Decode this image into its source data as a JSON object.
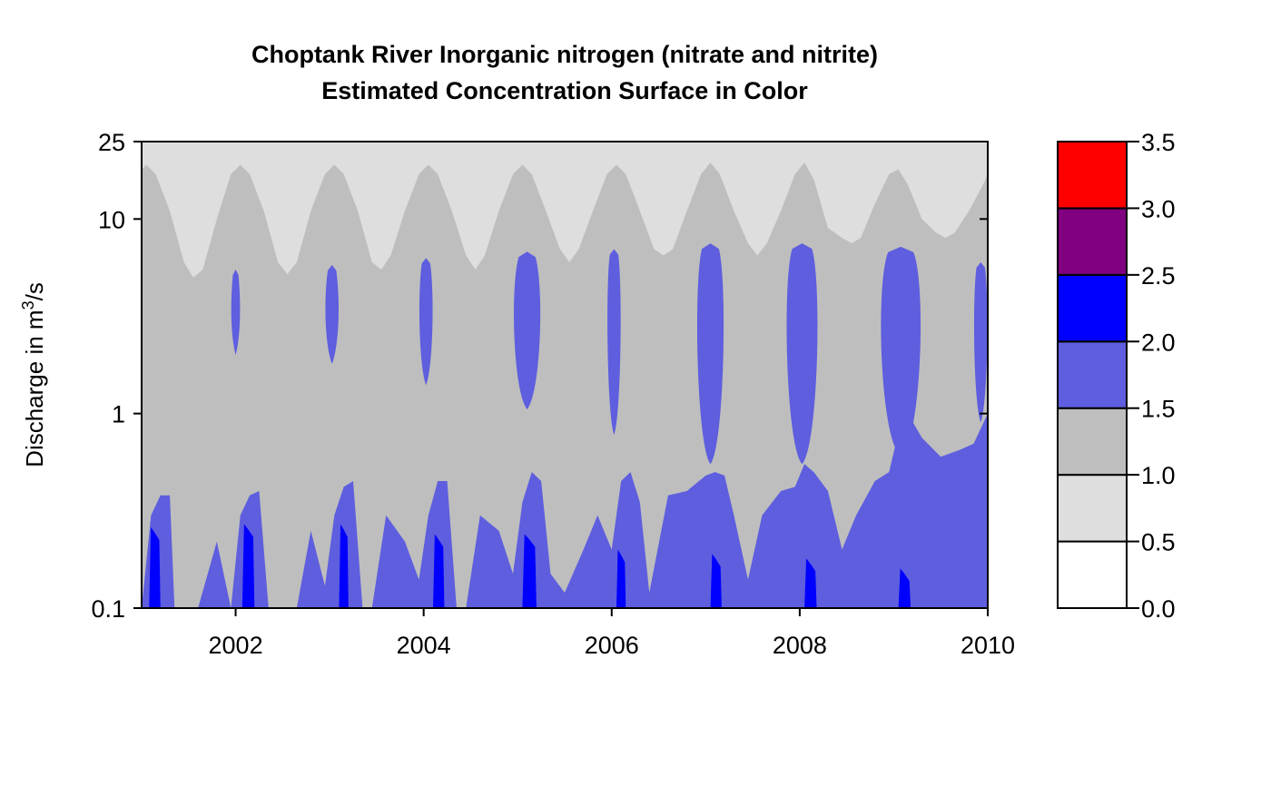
{
  "chart_data": {
    "type": "heatmap",
    "title": "Choptank River   Inorganic nitrogen (nitrate and nitrite)",
    "subtitle": "Estimated Concentration Surface in Color",
    "ylabel_prefix": "Discharge in m",
    "ylabel_superscript": "3",
    "ylabel_suffix": "/s",
    "y_scale": "log",
    "xlim": [
      2001.0,
      2010.0
    ],
    "ylim": [
      0.1,
      25
    ],
    "x_ticks": [
      2002,
      2004,
      2006,
      2008,
      2010
    ],
    "x_tick_labels": [
      "2002",
      "2004",
      "2006",
      "2008",
      "2010"
    ],
    "y_ticks": [
      0.1,
      1,
      10,
      25
    ],
    "y_tick_labels": [
      "0.1",
      "1",
      "10",
      "25"
    ],
    "colorbar": {
      "breaks": [
        0.0,
        0.5,
        1.0,
        1.5,
        2.0,
        2.5,
        3.0,
        3.5
      ],
      "labels": [
        "0.0",
        "0.5",
        "1.0",
        "1.5",
        "2.0",
        "2.5",
        "3.0",
        "3.5"
      ],
      "colors": [
        "#ffffff",
        "#dedede",
        "#bebebe",
        "#5e5edf",
        "#0000ff",
        "#800080",
        "#ff0000"
      ]
    },
    "surface": {
      "pale_band_lower_edge": {
        "x": [
          2001.0,
          2001.05,
          2001.15,
          2001.3,
          2001.45,
          2001.55,
          2001.65,
          2001.8,
          2001.95,
          2002.05,
          2002.15,
          2002.3,
          2002.45,
          2002.55,
          2002.65,
          2002.8,
          2002.95,
          2003.05,
          2003.15,
          2003.3,
          2003.45,
          2003.55,
          2003.65,
          2003.8,
          2003.95,
          2004.05,
          2004.15,
          2004.3,
          2004.45,
          2004.55,
          2004.65,
          2004.8,
          2004.95,
          2005.05,
          2005.15,
          2005.3,
          2005.45,
          2005.55,
          2005.65,
          2005.8,
          2005.95,
          2006.05,
          2006.15,
          2006.3,
          2006.45,
          2006.55,
          2006.65,
          2006.8,
          2006.95,
          2007.05,
          2007.15,
          2007.3,
          2007.45,
          2007.55,
          2007.65,
          2007.8,
          2007.95,
          2008.05,
          2008.15,
          2008.3,
          2008.45,
          2008.55,
          2008.65,
          2008.8,
          2008.95,
          2009.05,
          2009.15,
          2009.3,
          2009.45,
          2009.55,
          2009.65,
          2009.8,
          2009.95,
          2010.0
        ],
        "y": [
          18,
          19,
          17,
          11,
          6,
          5,
          5.5,
          10,
          17,
          19,
          17,
          11,
          6,
          5.2,
          6,
          11,
          17,
          19,
          17,
          11,
          6,
          5.5,
          6.5,
          11,
          17,
          19,
          17,
          11,
          6.5,
          5.5,
          6.5,
          11,
          17,
          19,
          17,
          11,
          7,
          6,
          7,
          11,
          17,
          19,
          17,
          11,
          7,
          6.5,
          7,
          11,
          17,
          19.5,
          17,
          11,
          7.5,
          6.5,
          7.5,
          11,
          17,
          19.5,
          16,
          9,
          8,
          7.5,
          8,
          12,
          17,
          18,
          15,
          10,
          8.5,
          8,
          8.5,
          11,
          15,
          17
        ]
      },
      "mid_blue_upper_edge": {
        "x": [
          2001.0,
          2001.1,
          2001.2,
          2001.3,
          2001.35,
          2001.5,
          2001.6,
          2001.8,
          2001.95,
          2002.05,
          2002.15,
          2002.25,
          2002.35,
          2002.45,
          2002.65,
          2002.8,
          2002.95,
          2003.05,
          2003.15,
          2003.25,
          2003.35,
          2003.45,
          2003.6,
          2003.8,
          2003.95,
          2004.05,
          2004.15,
          2004.25,
          2004.35,
          2004.45,
          2004.6,
          2004.8,
          2004.95,
          2005.05,
          2005.15,
          2005.25,
          2005.35,
          2005.5,
          2005.7,
          2005.85,
          2006.0,
          2006.1,
          2006.2,
          2006.3,
          2006.4,
          2006.6,
          2006.8,
          2007.0,
          2007.1,
          2007.2,
          2007.3,
          2007.45,
          2007.6,
          2007.8,
          2007.95,
          2008.05,
          2008.15,
          2008.3,
          2008.45,
          2008.6,
          2008.8,
          2008.95,
          2009.05,
          2009.15,
          2009.3,
          2009.5,
          2009.7,
          2009.85,
          2010.0
        ],
        "y": [
          0.1,
          0.3,
          0.38,
          0.38,
          0.1,
          0.1,
          0.1,
          0.22,
          0.1,
          0.3,
          0.38,
          0.4,
          0.1,
          0.1,
          0.1,
          0.25,
          0.13,
          0.3,
          0.42,
          0.45,
          0.1,
          0.1,
          0.3,
          0.22,
          0.14,
          0.3,
          0.45,
          0.45,
          0.1,
          0.1,
          0.3,
          0.25,
          0.15,
          0.35,
          0.5,
          0.45,
          0.15,
          0.12,
          0.2,
          0.3,
          0.2,
          0.45,
          0.5,
          0.35,
          0.12,
          0.38,
          0.4,
          0.48,
          0.5,
          0.48,
          0.3,
          0.14,
          0.3,
          0.4,
          0.42,
          0.55,
          0.5,
          0.4,
          0.2,
          0.3,
          0.45,
          0.5,
          0.8,
          1.0,
          0.75,
          0.6,
          0.65,
          0.7,
          1.0
        ]
      },
      "mid_blue_patches": [
        {
          "x": [
            2001.95,
            2002.05
          ],
          "y": [
            2.0,
            5.5
          ]
        },
        {
          "x": [
            2002.95,
            2003.1
          ],
          "y": [
            1.8,
            5.8
          ]
        },
        {
          "x": [
            2003.95,
            2004.1
          ],
          "y": [
            1.4,
            6.3
          ]
        },
        {
          "x": [
            2004.95,
            2005.25
          ],
          "y": [
            1.05,
            6.8
          ]
        },
        {
          "x": [
            2005.95,
            2006.1
          ],
          "y": [
            0.78,
            7.0
          ]
        },
        {
          "x": [
            2006.9,
            2007.2
          ],
          "y": [
            0.55,
            7.5
          ]
        },
        {
          "x": [
            2007.85,
            2008.2
          ],
          "y": [
            0.55,
            7.5
          ]
        },
        {
          "x": [
            2008.85,
            2009.3
          ],
          "y": [
            0.6,
            7.2
          ]
        },
        {
          "x": [
            2009.85,
            2010.0
          ],
          "y": [
            0.9,
            6.0
          ]
        }
      ],
      "dark_blue_spikes": [
        {
          "x": [
            2001.08,
            2001.2
          ],
          "y_top": 0.26
        },
        {
          "x": [
            2002.07,
            2002.2
          ],
          "y_top": 0.27
        },
        {
          "x": [
            2003.1,
            2003.2
          ],
          "y_top": 0.27
        },
        {
          "x": [
            2004.1,
            2004.22
          ],
          "y_top": 0.24
        },
        {
          "x": [
            2005.05,
            2005.2
          ],
          "y_top": 0.24
        },
        {
          "x": [
            2006.05,
            2006.15
          ],
          "y_top": 0.2
        },
        {
          "x": [
            2007.05,
            2007.17
          ],
          "y_top": 0.19
        },
        {
          "x": [
            2008.05,
            2008.18
          ],
          "y_top": 0.18
        },
        {
          "x": [
            2009.05,
            2009.18
          ],
          "y_top": 0.16
        }
      ]
    }
  }
}
